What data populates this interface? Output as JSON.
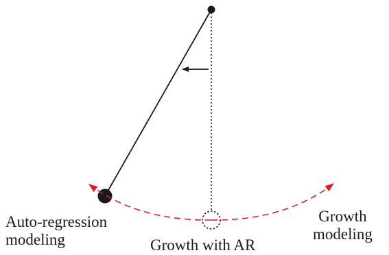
{
  "labels": {
    "autoregression": [
      "Auto-regression",
      "modeling"
    ],
    "growth_with_ar": "Growth with AR",
    "growth": [
      "Growth",
      "modeling"
    ]
  },
  "colors": {
    "ink": "#1a1a1a",
    "arc": "#e02020"
  }
}
